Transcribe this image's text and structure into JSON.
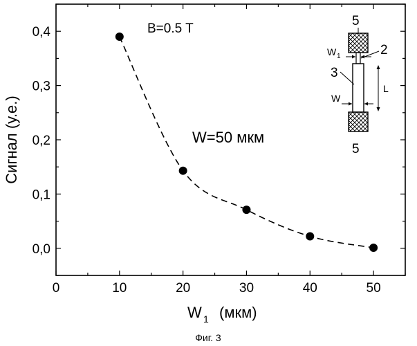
{
  "chart_data": {
    "type": "scatter",
    "title": "",
    "xlabel_main": "W",
    "xlabel_sub": "1",
    "xlabel_unit": "(мкм)",
    "ylabel": "Сигнал (у.е.)",
    "xlim": [
      0,
      55
    ],
    "ylim": [
      -0.05,
      0.45
    ],
    "x_ticks": [
      "0",
      "10",
      "20",
      "30",
      "40",
      "50"
    ],
    "y_ticks": [
      "0,0",
      "0,1",
      "0,2",
      "0,3",
      "0,4"
    ],
    "grid": false,
    "legend": "none",
    "series": [
      {
        "x": [
          10,
          20,
          30,
          40,
          50
        ],
        "y": [
          0.39,
          0.143,
          0.071,
          0.022,
          0.001
        ]
      }
    ],
    "fit_curve": "dashed",
    "annotations": {
      "field": "B=0.5 T",
      "width": "W=50 мкм"
    },
    "inset": {
      "label_top": "5",
      "label_bottom": "5",
      "label_2": "2",
      "label_3": "3",
      "label_w1_main": "W",
      "label_w1_sub": "1",
      "label_w": "W",
      "label_l": "L"
    }
  },
  "caption": "Фиг. 3",
  "colors": {
    "ink": "#000000",
    "background": "#ffffff"
  }
}
